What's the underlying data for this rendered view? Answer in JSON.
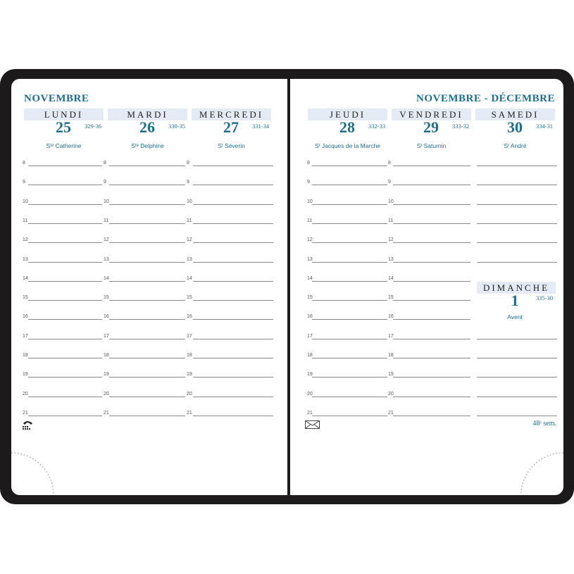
{
  "left_page": {
    "month": "NOVEMBRE",
    "days": [
      {
        "name": "LUNDI",
        "number": "25",
        "code": "329-36",
        "saint": "Sᵗᵉ Catherine"
      },
      {
        "name": "MARDI",
        "number": "26",
        "code": "330-35",
        "saint": "Sᵗᵉ Delphine"
      },
      {
        "name": "MERCREDI",
        "number": "27",
        "code": "331-34",
        "saint": "Sᵗ Séverin"
      }
    ],
    "icon": "telephone-icon"
  },
  "right_page": {
    "month": "NOVEMBRE - DÉCEMBRE",
    "days": [
      {
        "name": "JEUDI",
        "number": "28",
        "code": "332-33",
        "saint": "Sᵗ Jacques de la Marche"
      },
      {
        "name": "VENDREDI",
        "number": "29",
        "code": "333-32",
        "saint": "Sᵗ Saturnin"
      },
      {
        "name": "SAMEDI",
        "number": "30",
        "code": "334-31",
        "saint": "Sᵗ André"
      }
    ],
    "sunday": {
      "name": "DIMANCHE",
      "number": "1",
      "code": "335-30",
      "saint": "Avent"
    },
    "week": "48ᵉ sem.",
    "icon": "envelope-icon"
  },
  "hours": [
    "8",
    "9",
    "10",
    "11",
    "12",
    "13",
    "14",
    "15",
    "16",
    "17",
    "18",
    "19",
    "20",
    "21"
  ],
  "colors": {
    "accent": "#1e6e8e",
    "header_bg": "#e4ebf4",
    "cover": "#1c1a1b"
  }
}
